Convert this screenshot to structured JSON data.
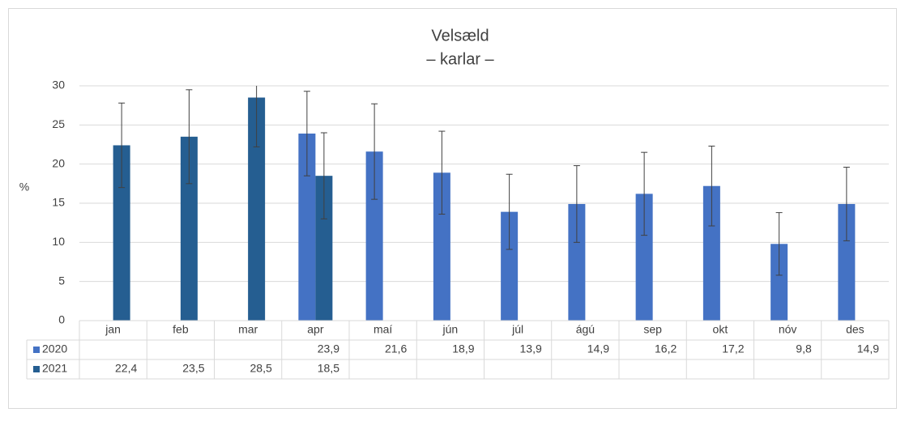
{
  "chart_data": {
    "type": "bar",
    "title": "Velsæld",
    "subtitle": "– karlar –",
    "y_label": "%",
    "categories": [
      "jan",
      "feb",
      "mar",
      "apr",
      "maí",
      "jún",
      "júl",
      "ágú",
      "sep",
      "okt",
      "nóv",
      "des"
    ],
    "series": [
      {
        "name": "2020",
        "color": "#4472c4",
        "values": [
          null,
          null,
          null,
          23.9,
          21.6,
          18.9,
          13.9,
          14.9,
          16.2,
          17.2,
          9.8,
          14.9
        ],
        "value_labels": [
          null,
          null,
          null,
          "23,9",
          "21,6",
          "18,9",
          "13,9",
          "14,9",
          "16,2",
          "17,2",
          "9,8",
          "14,9"
        ],
        "errors": [
          null,
          null,
          null,
          5.4,
          6.1,
          5.3,
          4.8,
          4.9,
          5.3,
          5.1,
          4.0,
          4.7
        ]
      },
      {
        "name": "2021",
        "color": "#255e91",
        "values": [
          22.4,
          23.5,
          28.5,
          18.5,
          null,
          null,
          null,
          null,
          null,
          null,
          null,
          null
        ],
        "value_labels": [
          "22,4",
          "23,5",
          "28,5",
          "18,5",
          null,
          null,
          null,
          null,
          null,
          null,
          null,
          null
        ],
        "errors": [
          5.4,
          6.0,
          6.3,
          5.5,
          null,
          null,
          null,
          null,
          null,
          null,
          null,
          null
        ]
      }
    ],
    "ylim": [
      0,
      30
    ],
    "yticks": [
      0,
      5,
      10,
      15,
      20,
      25,
      30
    ],
    "grid": true
  }
}
